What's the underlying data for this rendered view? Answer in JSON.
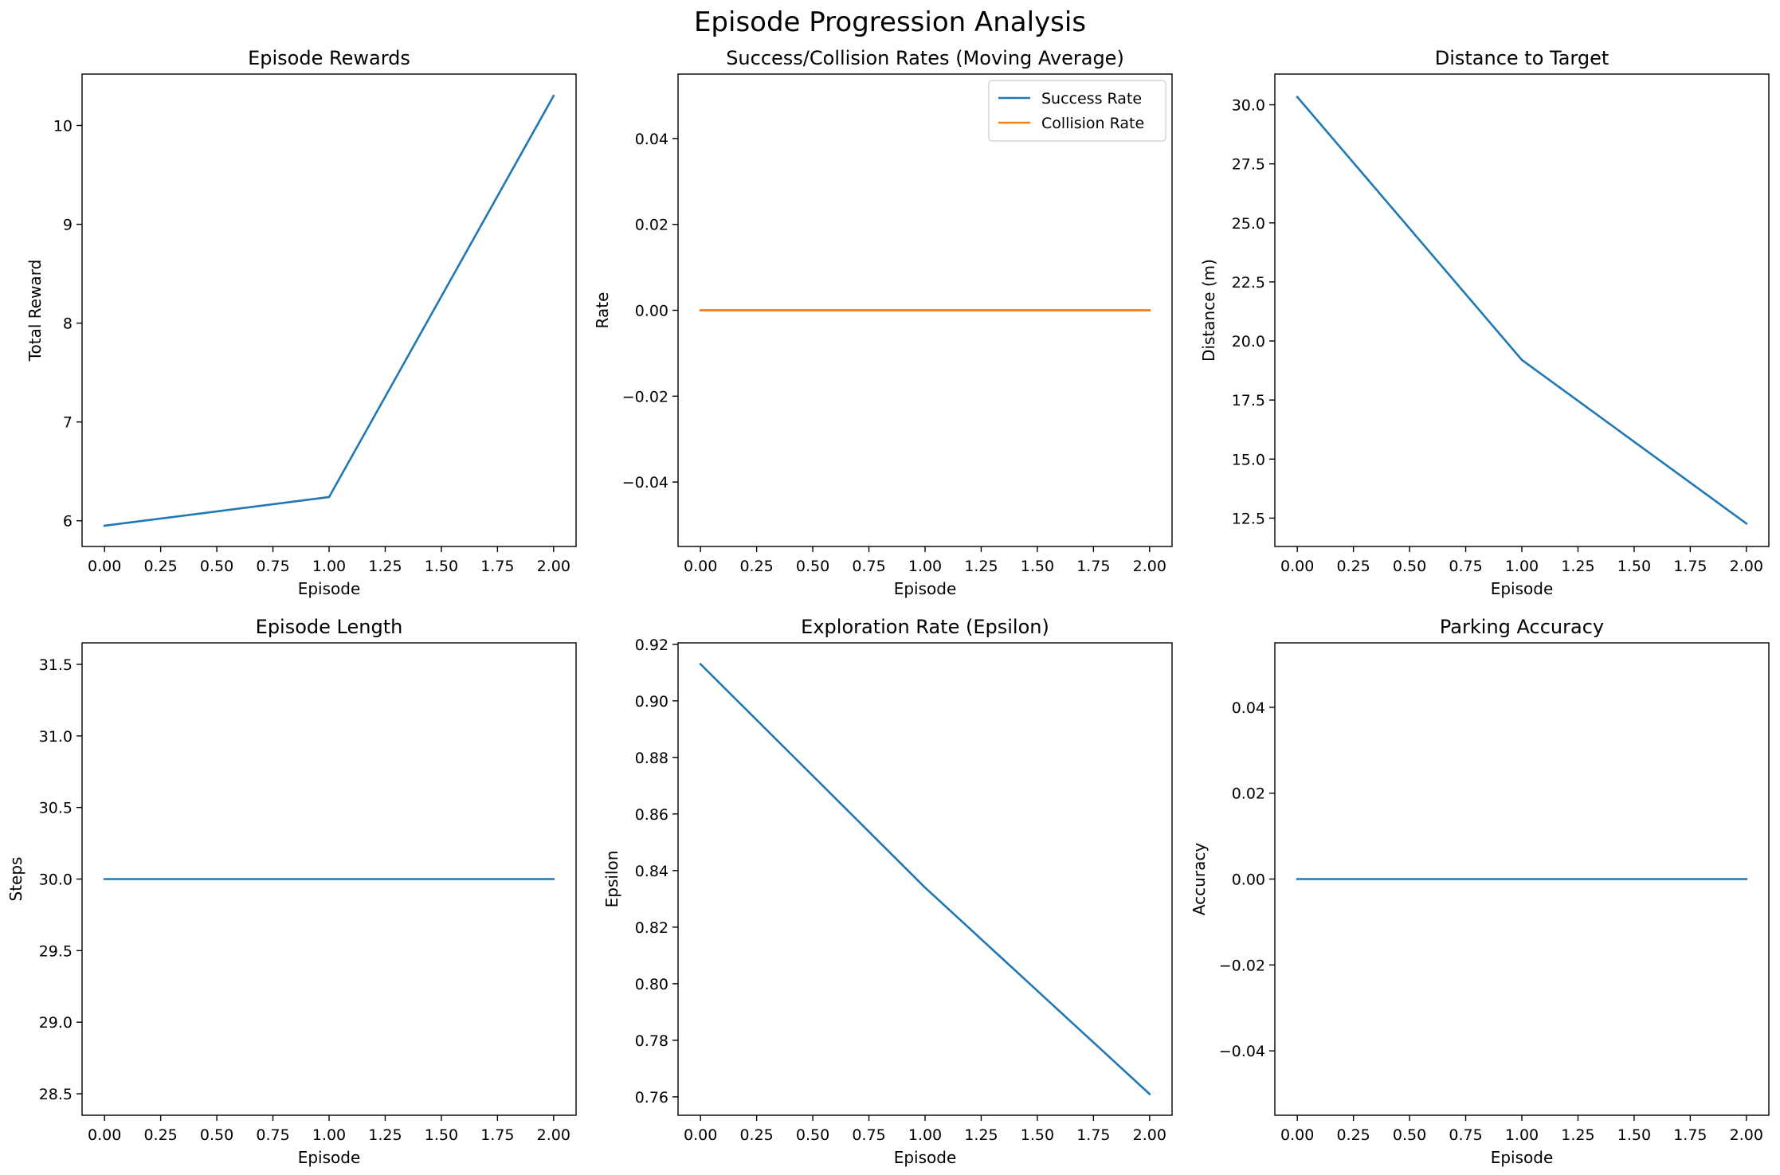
{
  "figure": {
    "suptitle": "Episode Progression Analysis"
  },
  "colors": {
    "blue": "#1f77b4",
    "orange": "#ff7f0e"
  },
  "chart_data": [
    {
      "id": "rewards",
      "type": "line",
      "title": "Episode Rewards",
      "xlabel": "Episode",
      "ylabel": "Total Reward",
      "xlim": [
        -0.1,
        2.1
      ],
      "ylim": [
        5.74,
        10.52
      ],
      "xticks": [
        0,
        0.25,
        0.5,
        0.75,
        1.0,
        1.25,
        1.5,
        1.75,
        2.0
      ],
      "xtick_labels": [
        "0.00",
        "0.25",
        "0.50",
        "0.75",
        "1.00",
        "1.25",
        "1.50",
        "1.75",
        "2.00"
      ],
      "yticks": [
        6,
        7,
        8,
        9,
        10
      ],
      "ytick_labels": [
        "6",
        "7",
        "8",
        "9",
        "10"
      ],
      "series": [
        {
          "x": [
            0,
            1,
            2
          ],
          "values": [
            5.95,
            6.24,
            10.3
          ],
          "color": "#1f77b4"
        }
      ]
    },
    {
      "id": "rates",
      "type": "line",
      "title": "Success/Collision Rates (Moving Average)",
      "xlabel": "Episode",
      "ylabel": "Rate",
      "xlim": [
        -0.1,
        2.1
      ],
      "ylim": [
        -0.055,
        0.055
      ],
      "xticks": [
        0,
        0.25,
        0.5,
        0.75,
        1.0,
        1.25,
        1.5,
        1.75,
        2.0
      ],
      "xtick_labels": [
        "0.00",
        "0.25",
        "0.50",
        "0.75",
        "1.00",
        "1.25",
        "1.50",
        "1.75",
        "2.00"
      ],
      "yticks": [
        -0.04,
        -0.02,
        0.0,
        0.02,
        0.04
      ],
      "ytick_labels": [
        "−0.04",
        "−0.02",
        "0.00",
        "0.02",
        "0.04"
      ],
      "legend": "top-right",
      "series": [
        {
          "name": "Success Rate",
          "x": [
            0,
            1,
            2
          ],
          "values": [
            0,
            0,
            0
          ],
          "color": "#1f77b4"
        },
        {
          "name": "Collision Rate",
          "x": [
            0,
            1,
            2
          ],
          "values": [
            0,
            0,
            0
          ],
          "color": "#ff7f0e"
        }
      ]
    },
    {
      "id": "distance",
      "type": "line",
      "title": "Distance to Target",
      "xlabel": "Episode",
      "ylabel": "Distance (m)",
      "xlim": [
        -0.1,
        2.1
      ],
      "ylim": [
        11.3,
        31.3
      ],
      "xticks": [
        0,
        0.25,
        0.5,
        0.75,
        1.0,
        1.25,
        1.5,
        1.75,
        2.0
      ],
      "xtick_labels": [
        "0.00",
        "0.25",
        "0.50",
        "0.75",
        "1.00",
        "1.25",
        "1.50",
        "1.75",
        "2.00"
      ],
      "yticks": [
        12.5,
        15.0,
        17.5,
        20.0,
        22.5,
        25.0,
        27.5,
        30.0
      ],
      "ytick_labels": [
        "12.5",
        "15.0",
        "17.5",
        "20.0",
        "22.5",
        "25.0",
        "27.5",
        "30.0"
      ],
      "series": [
        {
          "x": [
            0,
            1,
            2
          ],
          "values": [
            30.33,
            19.2,
            12.27
          ],
          "color": "#1f77b4"
        }
      ]
    },
    {
      "id": "length",
      "type": "line",
      "title": "Episode Length",
      "xlabel": "Episode",
      "ylabel": "Steps",
      "xlim": [
        -0.1,
        2.1
      ],
      "ylim": [
        28.35,
        31.65
      ],
      "xticks": [
        0,
        0.25,
        0.5,
        0.75,
        1.0,
        1.25,
        1.5,
        1.75,
        2.0
      ],
      "xtick_labels": [
        "0.00",
        "0.25",
        "0.50",
        "0.75",
        "1.00",
        "1.25",
        "1.50",
        "1.75",
        "2.00"
      ],
      "yticks": [
        28.5,
        29.0,
        29.5,
        30.0,
        30.5,
        31.0,
        31.5
      ],
      "ytick_labels": [
        "28.5",
        "29.0",
        "29.5",
        "30.0",
        "30.5",
        "31.0",
        "31.5"
      ],
      "series": [
        {
          "x": [
            0,
            1,
            2
          ],
          "values": [
            30,
            30,
            30
          ],
          "color": "#1f77b4"
        }
      ]
    },
    {
      "id": "epsilon",
      "type": "line",
      "title": "Exploration Rate (Epsilon)",
      "xlabel": "Episode",
      "ylabel": "Epsilon",
      "xlim": [
        -0.1,
        2.1
      ],
      "ylim": [
        0.7535,
        0.9205
      ],
      "xticks": [
        0,
        0.25,
        0.5,
        0.75,
        1.0,
        1.25,
        1.5,
        1.75,
        2.0
      ],
      "xtick_labels": [
        "0.00",
        "0.25",
        "0.50",
        "0.75",
        "1.00",
        "1.25",
        "1.50",
        "1.75",
        "2.00"
      ],
      "yticks": [
        0.76,
        0.78,
        0.8,
        0.82,
        0.84,
        0.86,
        0.88,
        0.9,
        0.92
      ],
      "ytick_labels": [
        "0.76",
        "0.78",
        "0.80",
        "0.82",
        "0.84",
        "0.86",
        "0.88",
        "0.90",
        "0.92"
      ],
      "series": [
        {
          "x": [
            0,
            1,
            2
          ],
          "values": [
            0.913,
            0.834,
            0.761
          ],
          "color": "#1f77b4"
        }
      ]
    },
    {
      "id": "accuracy",
      "type": "line",
      "title": "Parking Accuracy",
      "xlabel": "Episode",
      "ylabel": "Accuracy",
      "xlim": [
        -0.1,
        2.1
      ],
      "ylim": [
        -0.055,
        0.055
      ],
      "xticks": [
        0,
        0.25,
        0.5,
        0.75,
        1.0,
        1.25,
        1.5,
        1.75,
        2.0
      ],
      "xtick_labels": [
        "0.00",
        "0.25",
        "0.50",
        "0.75",
        "1.00",
        "1.25",
        "1.50",
        "1.75",
        "2.00"
      ],
      "yticks": [
        -0.04,
        -0.02,
        0.0,
        0.02,
        0.04
      ],
      "ytick_labels": [
        "−0.04",
        "−0.02",
        "0.00",
        "0.02",
        "0.04"
      ],
      "series": [
        {
          "x": [
            0,
            1,
            2
          ],
          "values": [
            0,
            0,
            0
          ],
          "color": "#1f77b4"
        }
      ]
    }
  ]
}
